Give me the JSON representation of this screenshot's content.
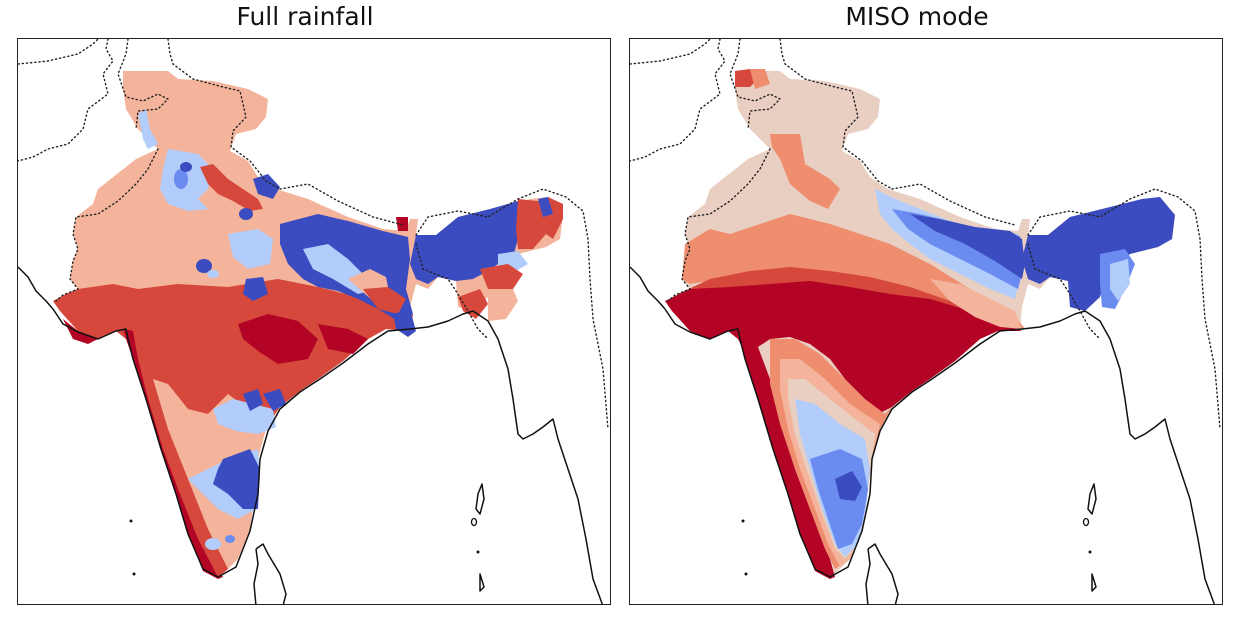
{
  "figure": {
    "panels": [
      {
        "title": "Full rainfall",
        "map_region": "Indian subcontinent",
        "pattern": "mixed"
      },
      {
        "title": "MISO mode",
        "map_region": "Indian subcontinent",
        "pattern": "dipole"
      }
    ]
  },
  "colormap": {
    "name": "coolwarm",
    "levels": [
      "#3a4cc0",
      "#6688ee",
      "#9ebeff",
      "#c9d7f0",
      "#edd1c2",
      "#f7ad8f",
      "#e0654f",
      "#b40426"
    ],
    "coastline_color": "#000000",
    "border_style": "dotted"
  },
  "colors": {
    "dark_blue": "#3b4cc0",
    "mid_blue": "#6a8bef",
    "light_blue": "#b2ccfb",
    "pale": "#e9cfc2",
    "light_red": "#f4b49b",
    "salmon": "#ef8d6f",
    "red": "#d6483c",
    "dark_red": "#b40426"
  }
}
